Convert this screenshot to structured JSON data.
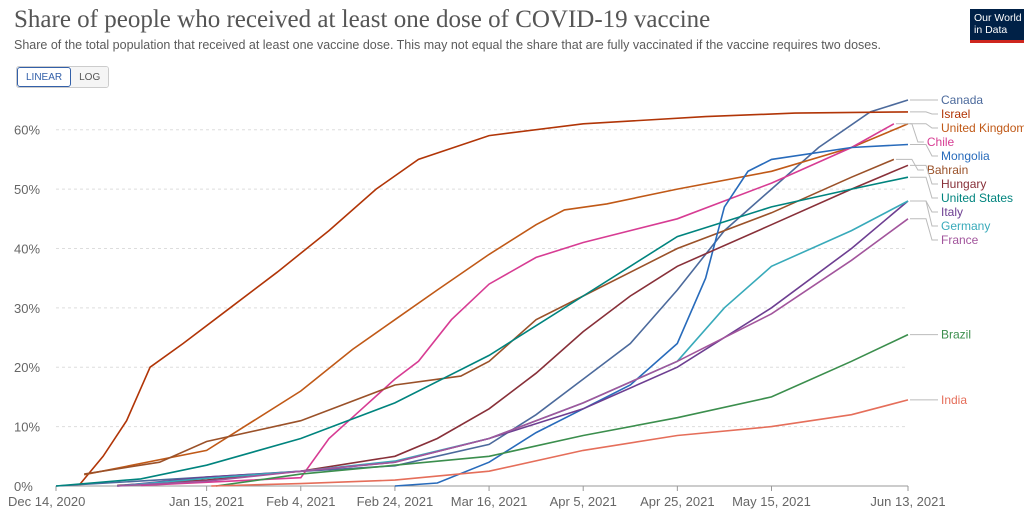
{
  "header": {
    "title": "Share of people who received at least one dose of COVID-19 vaccine",
    "subtitle": "Share of the total population that received at least one vaccine dose. This may not equal the share that are fully vaccinated if the vaccine requires two doses.",
    "logo_line1": "Our World",
    "logo_line2": "in Data"
  },
  "controls": {
    "linear_label": "LINEAR",
    "log_label": "LOG",
    "selected": "LINEAR"
  },
  "chart_data": {
    "type": "line",
    "y_scale": "linear",
    "ylim": [
      0,
      65
    ],
    "y_ticks": [
      0,
      10,
      20,
      30,
      40,
      50,
      60
    ],
    "y_tick_labels": [
      "0%",
      "10%",
      "20%",
      "30%",
      "40%",
      "50%",
      "60%"
    ],
    "x_range": [
      "2020-12-14",
      "2021-06-13"
    ],
    "x_ticks": [
      "2020-12-14",
      "2021-01-15",
      "2021-02-04",
      "2021-02-24",
      "2021-03-16",
      "2021-04-05",
      "2021-04-25",
      "2021-05-15",
      "2021-06-13"
    ],
    "x_tick_labels": [
      "Dec 14, 2020",
      "Jan 15, 2021",
      "Feb 4, 2021",
      "Feb 24, 2021",
      "Mar 16, 2021",
      "Apr 5, 2021",
      "Apr 25, 2021",
      "May 15, 2021",
      "Jun 13, 2021"
    ],
    "series": [
      {
        "name": "Canada",
        "color": "#4c6a9c",
        "points": [
          [
            "2020-12-14",
            0
          ],
          [
            "2021-01-15",
            1.5
          ],
          [
            "2021-02-24",
            3.4
          ],
          [
            "2021-03-16",
            7
          ],
          [
            "2021-03-26",
            12
          ],
          [
            "2021-04-05",
            18
          ],
          [
            "2021-04-15",
            24
          ],
          [
            "2021-04-25",
            33
          ],
          [
            "2021-05-05",
            43
          ],
          [
            "2021-05-15",
            50
          ],
          [
            "2021-05-25",
            57
          ],
          [
            "2021-06-05",
            63
          ],
          [
            "2021-06-13",
            65
          ]
        ]
      },
      {
        "name": "Israel",
        "color": "#b13507",
        "points": [
          [
            "2020-12-19",
            0.2
          ],
          [
            "2020-12-24",
            5
          ],
          [
            "2020-12-29",
            11
          ],
          [
            "2021-01-03",
            20
          ],
          [
            "2021-01-10",
            24
          ],
          [
            "2021-01-20",
            30
          ],
          [
            "2021-01-30",
            36
          ],
          [
            "2021-02-10",
            43
          ],
          [
            "2021-02-20",
            50
          ],
          [
            "2021-03-01",
            55
          ],
          [
            "2021-03-16",
            59
          ],
          [
            "2021-04-05",
            61
          ],
          [
            "2021-05-01",
            62.2
          ],
          [
            "2021-05-20",
            62.8
          ],
          [
            "2021-06-13",
            63
          ]
        ]
      },
      {
        "name": "United Kingdom",
        "color": "#c05917",
        "points": [
          [
            "2020-12-20",
            1.9
          ],
          [
            "2021-01-15",
            6
          ],
          [
            "2021-02-04",
            16
          ],
          [
            "2021-02-15",
            23
          ],
          [
            "2021-02-24",
            28
          ],
          [
            "2021-03-05",
            33
          ],
          [
            "2021-03-16",
            39
          ],
          [
            "2021-03-26",
            44
          ],
          [
            "2021-04-01",
            46.5
          ],
          [
            "2021-04-10",
            47.5
          ],
          [
            "2021-04-25",
            50
          ],
          [
            "2021-05-15",
            53
          ],
          [
            "2021-06-01",
            57
          ],
          [
            "2021-06-13",
            61
          ]
        ]
      },
      {
        "name": "Chile",
        "color": "#d73c93",
        "points": [
          [
            "2021-01-01",
            0.1
          ],
          [
            "2021-02-04",
            1.4
          ],
          [
            "2021-02-10",
            8
          ],
          [
            "2021-02-17",
            13
          ],
          [
            "2021-02-24",
            18
          ],
          [
            "2021-03-01",
            21
          ],
          [
            "2021-03-08",
            28
          ],
          [
            "2021-03-16",
            34
          ],
          [
            "2021-03-26",
            38.5
          ],
          [
            "2021-04-05",
            41
          ],
          [
            "2021-04-25",
            45
          ],
          [
            "2021-05-15",
            51
          ],
          [
            "2021-06-01",
            57
          ],
          [
            "2021-06-10",
            61
          ]
        ]
      },
      {
        "name": "Bahrain",
        "color": "#9a5129",
        "points": [
          [
            "2020-12-20",
            2
          ],
          [
            "2021-01-05",
            4
          ],
          [
            "2021-01-15",
            7.5
          ],
          [
            "2021-02-04",
            11
          ],
          [
            "2021-02-24",
            17
          ],
          [
            "2021-03-10",
            18.5
          ],
          [
            "2021-03-16",
            21
          ],
          [
            "2021-03-26",
            28
          ],
          [
            "2021-04-05",
            32
          ],
          [
            "2021-04-25",
            40
          ],
          [
            "2021-05-15",
            46
          ],
          [
            "2021-06-01",
            52
          ],
          [
            "2021-06-10",
            55
          ]
        ]
      },
      {
        "name": "Mongolia",
        "color": "#286bbb",
        "points": [
          [
            "2021-02-24",
            0
          ],
          [
            "2021-03-05",
            0.5
          ],
          [
            "2021-03-16",
            4
          ],
          [
            "2021-03-26",
            9
          ],
          [
            "2021-04-05",
            13
          ],
          [
            "2021-04-15",
            17
          ],
          [
            "2021-04-25",
            24
          ],
          [
            "2021-05-01",
            35
          ],
          [
            "2021-05-05",
            47
          ],
          [
            "2021-05-10",
            53
          ],
          [
            "2021-05-15",
            55
          ],
          [
            "2021-06-01",
            57
          ],
          [
            "2021-06-13",
            57.5
          ]
        ]
      },
      {
        "name": "Hungary",
        "color": "#883039",
        "points": [
          [
            "2020-12-27",
            0.1
          ],
          [
            "2021-01-15",
            1
          ],
          [
            "2021-02-04",
            2.5
          ],
          [
            "2021-02-24",
            5
          ],
          [
            "2021-03-05",
            8
          ],
          [
            "2021-03-16",
            13
          ],
          [
            "2021-03-26",
            19
          ],
          [
            "2021-04-05",
            26
          ],
          [
            "2021-04-15",
            32
          ],
          [
            "2021-04-25",
            37
          ],
          [
            "2021-05-15",
            44
          ],
          [
            "2021-06-01",
            50
          ],
          [
            "2021-06-13",
            54
          ]
        ]
      },
      {
        "name": "United States",
        "color": "#00847e",
        "points": [
          [
            "2020-12-14",
            0
          ],
          [
            "2021-01-01",
            1.2
          ],
          [
            "2021-01-15",
            3.5
          ],
          [
            "2021-02-04",
            8
          ],
          [
            "2021-02-24",
            14
          ],
          [
            "2021-03-16",
            22
          ],
          [
            "2021-03-26",
            27
          ],
          [
            "2021-04-05",
            32
          ],
          [
            "2021-04-15",
            37
          ],
          [
            "2021-04-25",
            42
          ],
          [
            "2021-05-15",
            47
          ],
          [
            "2021-06-01",
            50
          ],
          [
            "2021-06-13",
            52
          ]
        ]
      },
      {
        "name": "Italy",
        "color": "#6d3e91",
        "points": [
          [
            "2020-12-27",
            0
          ],
          [
            "2021-01-15",
            1.5
          ],
          [
            "2021-02-04",
            2.5
          ],
          [
            "2021-02-24",
            4
          ],
          [
            "2021-03-16",
            8
          ],
          [
            "2021-04-05",
            13
          ],
          [
            "2021-04-25",
            20
          ],
          [
            "2021-05-15",
            30
          ],
          [
            "2021-06-01",
            40
          ],
          [
            "2021-06-13",
            48
          ]
        ]
      },
      {
        "name": "Germany",
        "color": "#38aaba",
        "points": [
          [
            "2020-12-27",
            0
          ],
          [
            "2021-01-15",
            1.3
          ],
          [
            "2021-02-04",
            2.5
          ],
          [
            "2021-02-24",
            4.2
          ],
          [
            "2021-03-16",
            8
          ],
          [
            "2021-04-05",
            14
          ],
          [
            "2021-04-25",
            21
          ],
          [
            "2021-05-05",
            30
          ],
          [
            "2021-05-15",
            37
          ],
          [
            "2021-06-01",
            43
          ],
          [
            "2021-06-13",
            48
          ]
        ]
      },
      {
        "name": "France",
        "color": "#a2559c",
        "points": [
          [
            "2020-12-27",
            0
          ],
          [
            "2021-01-15",
            0.8
          ],
          [
            "2021-02-04",
            2.5
          ],
          [
            "2021-02-24",
            4
          ],
          [
            "2021-03-16",
            8
          ],
          [
            "2021-04-05",
            14
          ],
          [
            "2021-04-25",
            21
          ],
          [
            "2021-05-15",
            29
          ],
          [
            "2021-06-01",
            38
          ],
          [
            "2021-06-13",
            45
          ]
        ]
      },
      {
        "name": "Brazil",
        "color": "#3b8e4d",
        "points": [
          [
            "2021-01-17",
            0
          ],
          [
            "2021-02-04",
            2
          ],
          [
            "2021-02-24",
            3.5
          ],
          [
            "2021-03-16",
            5
          ],
          [
            "2021-04-05",
            8.5
          ],
          [
            "2021-04-25",
            11.5
          ],
          [
            "2021-05-15",
            15
          ],
          [
            "2021-06-01",
            21
          ],
          [
            "2021-06-13",
            25.5
          ]
        ]
      },
      {
        "name": "India",
        "color": "#e56e5a",
        "points": [
          [
            "2021-01-16",
            0
          ],
          [
            "2021-02-04",
            0.4
          ],
          [
            "2021-02-24",
            1
          ],
          [
            "2021-03-16",
            2.5
          ],
          [
            "2021-04-05",
            6
          ],
          [
            "2021-04-25",
            8.5
          ],
          [
            "2021-05-15",
            10
          ],
          [
            "2021-06-01",
            12
          ],
          [
            "2021-06-13",
            14.5
          ]
        ]
      }
    ]
  }
}
